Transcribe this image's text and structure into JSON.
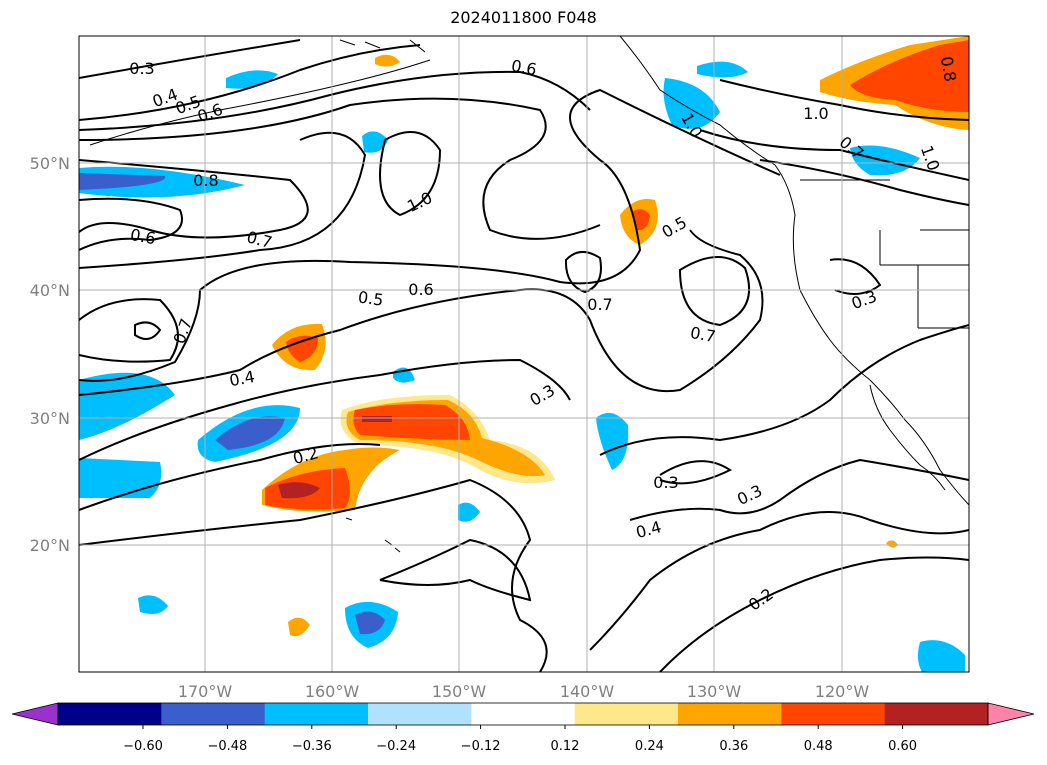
{
  "title": "2024011800 F048",
  "map": {
    "region": "North Pacific / western North America",
    "lat_labels": [
      "50°N",
      "40°N",
      "30°N",
      "20°N"
    ],
    "lon_labels": [
      "170°W",
      "160°W",
      "150°W",
      "140°W",
      "130°W",
      "120°W"
    ],
    "contour_labels": [
      "0.3",
      "0.4",
      "0.5",
      "0.6",
      "0.6",
      "1.0",
      "0.8",
      "0.6",
      "0.7",
      "1.0",
      "0.5",
      "0.7",
      "0.5",
      "0.6",
      "0.7",
      "0.7",
      "0.3",
      "0.4",
      "0.3",
      "0.2",
      "0.3",
      "0.3",
      "0.4",
      "0.2",
      "1.0",
      "0.7",
      "1.0",
      "0.8"
    ]
  },
  "colorbar": {
    "ticks": [
      "−0.60",
      "−0.48",
      "−0.36",
      "−0.24",
      "−0.12",
      "0.12",
      "0.24",
      "0.36",
      "0.48",
      "0.60"
    ],
    "colors": [
      "#9932cc",
      "#00008b",
      "#3a5fcd",
      "#00bfff",
      "#b0e2ff",
      "#ffffff",
      "#ffe78c",
      "#ffa500",
      "#ff4500",
      "#b22222",
      "#ff82ab"
    ],
    "extend": "both"
  }
}
